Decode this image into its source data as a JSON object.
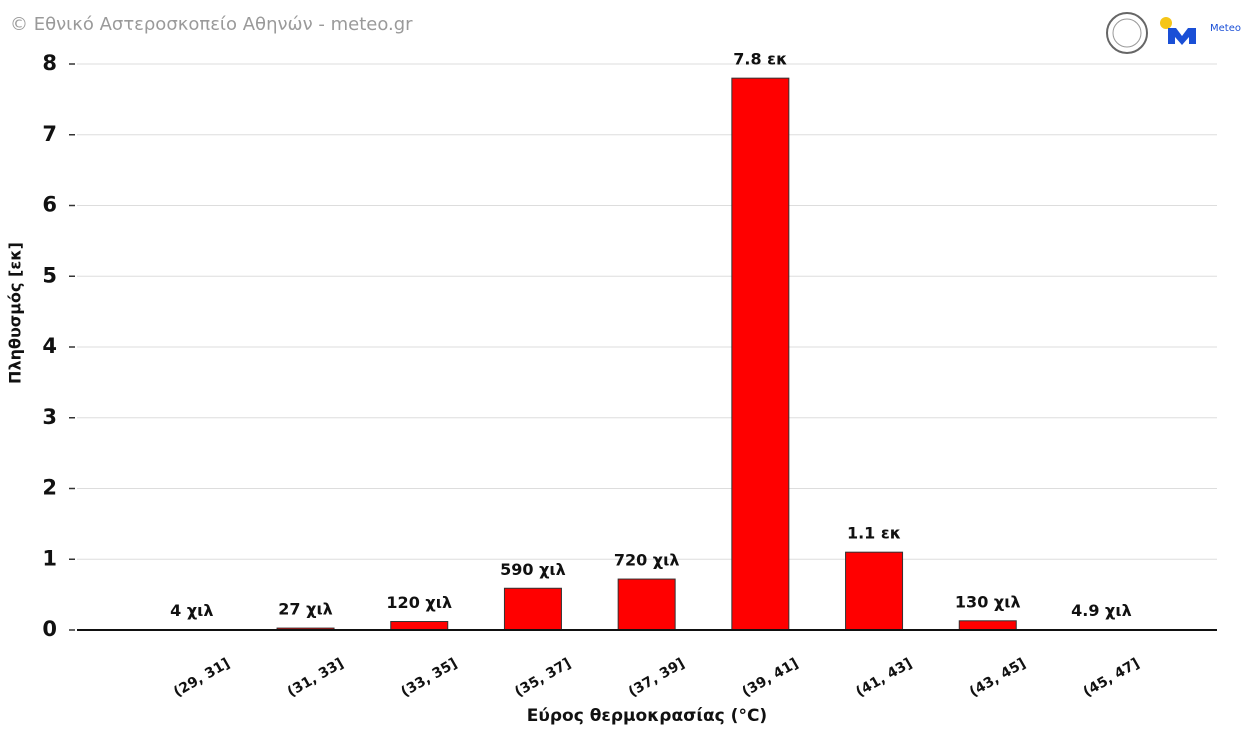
{
  "chart_data": {
    "type": "bar",
    "credit": "© Εθνικό Αστεροσκοπείο Αθηνών - meteo.gr",
    "logo_text": "Meteo",
    "xlabel": "Εύρος θερμοκρασίας (°C)",
    "ylabel": "Πληθυσμός [εκ]",
    "categories": [
      "(29, 31]",
      "(31, 33]",
      "(33, 35]",
      "(35, 37]",
      "(37, 39]",
      "(39, 41]",
      "(41, 43]",
      "(43, 45]",
      "(45, 47]"
    ],
    "values": [
      0.004,
      0.027,
      0.12,
      0.59,
      0.72,
      7.8,
      1.1,
      0.13,
      0.0049
    ],
    "value_labels": [
      "4 χιλ",
      "27 χιλ",
      "120 χιλ",
      "590 χιλ",
      "720 χιλ",
      "7.8 εκ",
      "1.1 εκ",
      "130 χιλ",
      "4.9 χιλ"
    ],
    "color": "#ff0000",
    "ylim": [
      0,
      8
    ],
    "yticks": [
      0,
      1,
      2,
      3,
      4,
      5,
      6,
      7,
      8
    ],
    "grid": true
  }
}
